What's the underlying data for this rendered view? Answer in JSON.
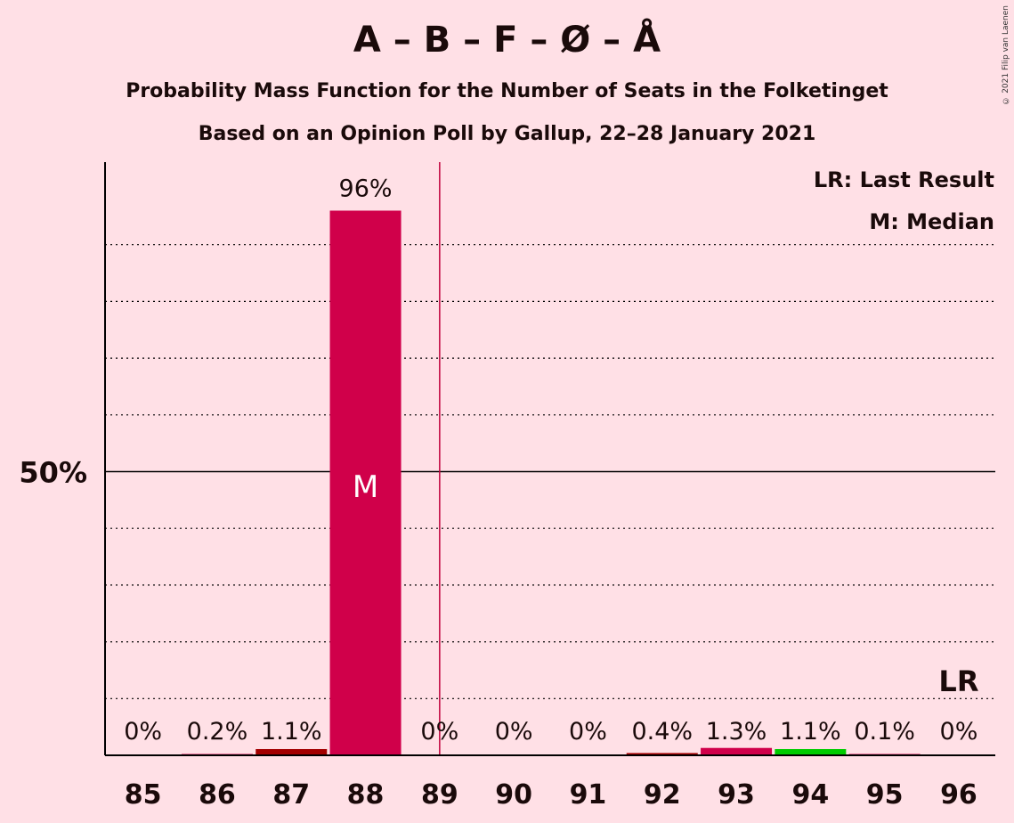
{
  "title": "A – B – F – Ø – Å",
  "subtitle": "Probability Mass Function for the Number of Seats in the Folketinget",
  "subtitle2": "Based on an Opinion Poll by Gallup, 22–28 January 2021",
  "copyright": "© 2021 Filip van Laenen",
  "legend": {
    "lr": "LR: Last Result",
    "median": "M: Median"
  },
  "colors": {
    "background": "#FFE0E6",
    "main": "#D0004A",
    "dark_red": "#A30000",
    "green": "#00CC00",
    "median_line": "#C0003C"
  },
  "chart_data": {
    "type": "bar",
    "categories": [
      "85",
      "86",
      "87",
      "88",
      "89",
      "90",
      "91",
      "92",
      "93",
      "94",
      "95",
      "96"
    ],
    "values": [
      0,
      0.2,
      1.1,
      96,
      0,
      0,
      0,
      0.4,
      1.3,
      1.1,
      0.1,
      0
    ],
    "value_labels": [
      "0%",
      "0.2%",
      "1.1%",
      "96%",
      "0%",
      "0%",
      "0%",
      "0.4%",
      "1.3%",
      "1.1%",
      "0.1%",
      "0%"
    ],
    "bar_colors": [
      "#D0004A",
      "#D0004A",
      "#A30000",
      "#D0004A",
      "#D0004A",
      "#D0004A",
      "#D0004A",
      "#A30000",
      "#D0004A",
      "#00CC00",
      "#D0004A",
      "#D0004A"
    ],
    "ylim": [
      0,
      100
    ],
    "ytick_label": "50%",
    "ytick_value": 50,
    "grid": true,
    "median_category": "88",
    "median_marker": "M",
    "last_result_category": "96",
    "last_result_marker": "LR",
    "legend_position": "top-right"
  }
}
